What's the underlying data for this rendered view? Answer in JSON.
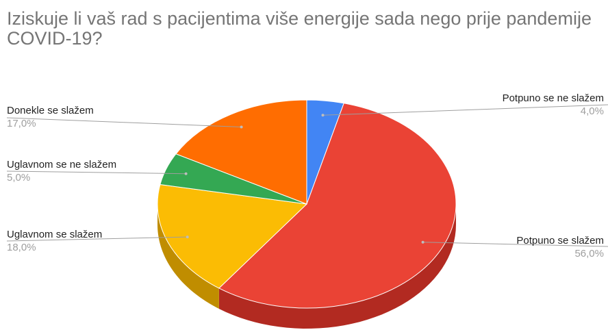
{
  "chart_data": {
    "type": "pie",
    "title": "Iziskuje li vaš rad s pacijentima više energije sada nego prije pandemije COVID-19?",
    "slices": [
      {
        "label": "Potpuno se ne slažem",
        "value": 4.0,
        "display": "4,0%",
        "color": "#4285F4",
        "side_color": "#2A56C6"
      },
      {
        "label": "Potpuno se slažem",
        "value": 56.0,
        "display": "56,0%",
        "color": "#EA4335",
        "side_color": "#B22A21"
      },
      {
        "label": "Uglavnom se slažem",
        "value": 18.0,
        "display": "18,0%",
        "color": "#FBBC04",
        "side_color": "#C08D00"
      },
      {
        "label": "Uglavnom se ne slažem",
        "value": 5.0,
        "display": "5,0%",
        "color": "#34A853",
        "side_color": "#22783A"
      },
      {
        "label": "Donekle se slažem",
        "value": 17.0,
        "display": "17,0%",
        "color": "#FF6D01",
        "side_color": "#C04F00"
      }
    ],
    "style": "3d-pie",
    "legend": "none",
    "data_labels": "outside"
  }
}
